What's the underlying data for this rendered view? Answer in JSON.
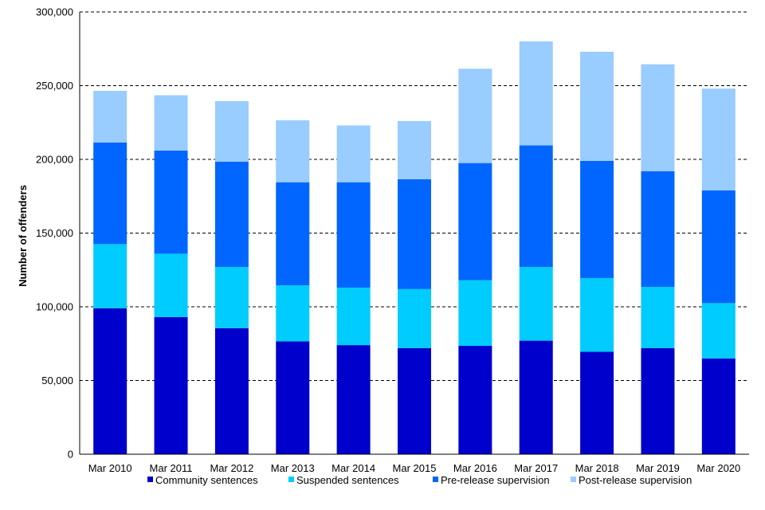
{
  "chart_data": {
    "type": "bar",
    "stacked": true,
    "ylabel": "Number of offenders",
    "ylim": [
      0,
      300000
    ],
    "yticks": [
      {
        "value": 0,
        "label": "0"
      },
      {
        "value": 50000,
        "label": "50,000"
      },
      {
        "value": 100000,
        "label": "100,000"
      },
      {
        "value": 150000,
        "label": "150,000"
      },
      {
        "value": 200000,
        "label": "200,000"
      },
      {
        "value": 250000,
        "label": "250,000"
      },
      {
        "value": 300000,
        "label": "300,000"
      }
    ],
    "grid": "horizontal-dashed",
    "legend_position": "bottom",
    "categories": [
      "Mar 2010",
      "Mar 2011",
      "Mar 2012",
      "Mar 2013",
      "Mar 2014",
      "Mar 2015",
      "Mar 2016",
      "Mar 2017",
      "Mar 2018",
      "Mar 2019",
      "Mar 2020"
    ],
    "series": [
      {
        "name": "Community sentences",
        "color": "#0000cc",
        "values": [
          99000,
          93000,
          85500,
          76500,
          74000,
          72000,
          73500,
          77000,
          69500,
          72000,
          65000
        ]
      },
      {
        "name": "Suspended sentences",
        "color": "#00ccff",
        "values": [
          43500,
          43000,
          41500,
          38000,
          39000,
          40000,
          44500,
          50000,
          50000,
          41500,
          37500
        ]
      },
      {
        "name": "Pre-release supervision",
        "color": "#0066ff",
        "values": [
          69000,
          70000,
          71500,
          70000,
          71500,
          74500,
          79500,
          82500,
          79500,
          78500,
          76500
        ]
      },
      {
        "name": "Post-release supervision",
        "color": "#99ccff",
        "values": [
          35000,
          37500,
          41000,
          42000,
          38500,
          39500,
          64000,
          70500,
          74000,
          72500,
          69000
        ]
      }
    ]
  }
}
